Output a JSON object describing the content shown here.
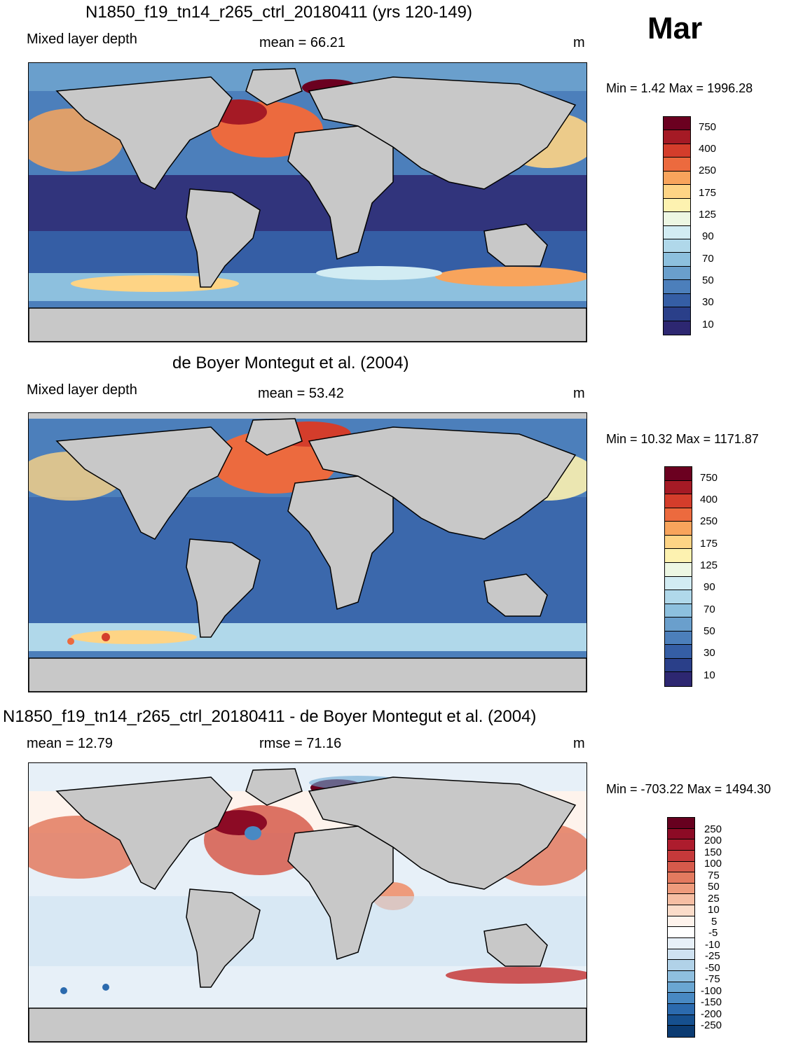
{
  "month": "Mar",
  "panels": [
    {
      "title": "N1850_f19_tn14_r265_ctrl_20180411 (yrs 120-149)",
      "left_label": "Mixed layer depth",
      "center_label": "mean =  66.21",
      "unit": "m",
      "minmax": "Min =   1.42 Max = 1996.28",
      "colorbar": {
        "labels": [
          "750",
          "400",
          "250",
          "175",
          "125",
          "90",
          "70",
          "50",
          "30",
          "10"
        ],
        "colors": [
          "#6b0020",
          "#a51a25",
          "#d43d2b",
          "#ec6a3e",
          "#f8a45c",
          "#fed485",
          "#fdf2b0",
          "#edf7e3",
          "#d2ecf3",
          "#b0d8ea",
          "#8dc0de",
          "#6a9fcc",
          "#4c7fbb",
          "#355ea5",
          "#2a3f89",
          "#2d2771"
        ]
      }
    },
    {
      "title": "de Boyer Montegut et al. (2004)",
      "left_label": "Mixed layer depth",
      "center_label": "mean =  53.42",
      "unit": "m",
      "minmax": "Min =  10.32 Max = 1171.87",
      "colorbar": {
        "labels": [
          "750",
          "400",
          "250",
          "175",
          "125",
          "90",
          "70",
          "50",
          "30",
          "10"
        ],
        "colors": [
          "#6b0020",
          "#a51a25",
          "#d43d2b",
          "#ec6a3e",
          "#f8a45c",
          "#fed485",
          "#fdf2b0",
          "#edf7e3",
          "#d2ecf3",
          "#b0d8ea",
          "#8dc0de",
          "#6a9fcc",
          "#4c7fbb",
          "#355ea5",
          "#2a3f89",
          "#2d2771"
        ]
      }
    },
    {
      "title": "N1850_f19_tn14_r265_ctrl_20180411 - de Boyer Montegut et al. (2004)",
      "left_label": "mean =  12.79",
      "center_label": "rmse =  71.16",
      "unit": "m",
      "minmax": "Min = -703.22 Max = 1494.30",
      "colorbar": {
        "labels": [
          "250",
          "200",
          "150",
          "100",
          "75",
          "50",
          "25",
          "10",
          "5",
          "-5",
          "-10",
          "-25",
          "-50",
          "-75",
          "-100",
          "-150",
          "-200",
          "-250"
        ],
        "colors": [
          "#67001f",
          "#8c0b25",
          "#ad1c2d",
          "#c5393a",
          "#d65a4b",
          "#e37a5f",
          "#ee9b7c",
          "#f6bea3",
          "#fbdcc9",
          "#fef3ec",
          "#ffffff",
          "#e7f0f8",
          "#cfe2f1",
          "#b1d2e8",
          "#8fbfdf",
          "#6aa6d2",
          "#4889c3",
          "#2b6aae",
          "#16508f",
          "#0b3b72"
        ]
      }
    }
  ]
}
